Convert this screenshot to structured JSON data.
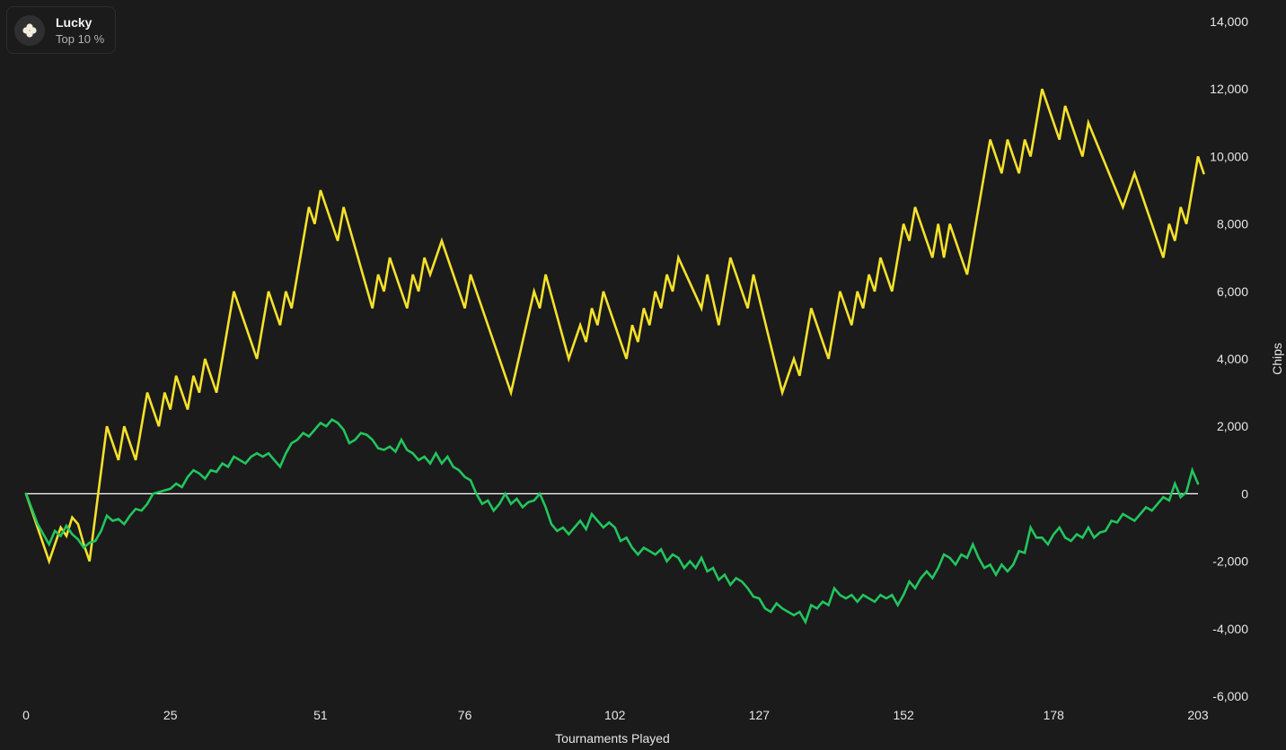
{
  "legend": {
    "name": "Lucky",
    "subtitle": "Top 10 %",
    "icon": "clover-icon"
  },
  "colors": {
    "background": "#1b1b1b",
    "yellow_series": "#f5e12a",
    "green_series": "#22c55e",
    "zero_line": "#ffffff",
    "text": "#e6e6e6"
  },
  "chart_data": {
    "type": "line",
    "xlabel": "Tournaments Played",
    "ylabel": "Chips",
    "xlim": [
      0,
      203
    ],
    "ylim": [
      -6000,
      14000
    ],
    "x_ticks": [
      0,
      25,
      51,
      76,
      102,
      127,
      152,
      178,
      203
    ],
    "y_ticks": [
      -6000,
      -4000,
      -2000,
      0,
      2000,
      4000,
      6000,
      8000,
      10000,
      12000,
      14000
    ],
    "y_tick_labels": [
      "-6,000",
      "-4,000",
      "-2,000",
      "0",
      "2,000",
      "4,000",
      "6,000",
      "8,000",
      "10,000",
      "12,000",
      "14,000"
    ],
    "reference_line": 0,
    "grid": false,
    "axis_position": "right",
    "series": [
      {
        "color": "#f5e12a",
        "points": [
          [
            0,
            0
          ],
          [
            4,
            -2000
          ],
          [
            5,
            -1500
          ],
          [
            6,
            -1000
          ],
          [
            7,
            -1250
          ],
          [
            8,
            -700
          ],
          [
            9,
            -900
          ],
          [
            10,
            -1500
          ],
          [
            11,
            -2000
          ],
          [
            14,
            2000
          ],
          [
            16,
            1000
          ],
          [
            17,
            2000
          ],
          [
            19,
            1000
          ],
          [
            21,
            3000
          ],
          [
            23,
            2000
          ],
          [
            24,
            3000
          ],
          [
            25,
            2500
          ],
          [
            26,
            3500
          ],
          [
            28,
            2500
          ],
          [
            29,
            3500
          ],
          [
            30,
            3000
          ],
          [
            31,
            4000
          ],
          [
            33,
            3000
          ],
          [
            36,
            6000
          ],
          [
            40,
            4000
          ],
          [
            42,
            6000
          ],
          [
            44,
            5000
          ],
          [
            45,
            6000
          ],
          [
            46,
            5500
          ],
          [
            49,
            8500
          ],
          [
            50,
            8000
          ],
          [
            51,
            9000
          ],
          [
            54,
            7500
          ],
          [
            55,
            8500
          ],
          [
            60,
            5500
          ],
          [
            61,
            6500
          ],
          [
            62,
            6000
          ],
          [
            63,
            7000
          ],
          [
            66,
            5500
          ],
          [
            67,
            6500
          ],
          [
            68,
            6000
          ],
          [
            69,
            7000
          ],
          [
            70,
            6500
          ],
          [
            72,
            7500
          ],
          [
            76,
            5500
          ],
          [
            77,
            6500
          ],
          [
            84,
            3000
          ],
          [
            88,
            6000
          ],
          [
            89,
            5500
          ],
          [
            90,
            6500
          ],
          [
            94,
            4000
          ],
          [
            96,
            5000
          ],
          [
            97,
            4500
          ],
          [
            98,
            5500
          ],
          [
            99,
            5000
          ],
          [
            100,
            6000
          ],
          [
            104,
            4000
          ],
          [
            105,
            5000
          ],
          [
            106,
            4500
          ],
          [
            107,
            5500
          ],
          [
            108,
            5000
          ],
          [
            109,
            6000
          ],
          [
            110,
            5500
          ],
          [
            111,
            6500
          ],
          [
            112,
            6000
          ],
          [
            113,
            7000
          ],
          [
            117,
            5500
          ],
          [
            118,
            6500
          ],
          [
            120,
            5000
          ],
          [
            122,
            7000
          ],
          [
            125,
            5500
          ],
          [
            126,
            6500
          ],
          [
            131,
            3000
          ],
          [
            133,
            4000
          ],
          [
            134,
            3500
          ],
          [
            136,
            5500
          ],
          [
            139,
            4000
          ],
          [
            141,
            6000
          ],
          [
            143,
            5000
          ],
          [
            144,
            6000
          ],
          [
            145,
            5500
          ],
          [
            146,
            6500
          ],
          [
            147,
            6000
          ],
          [
            148,
            7000
          ],
          [
            150,
            6000
          ],
          [
            152,
            8000
          ],
          [
            153,
            7500
          ],
          [
            154,
            8500
          ],
          [
            157,
            7000
          ],
          [
            158,
            8000
          ],
          [
            159,
            7000
          ],
          [
            160,
            8000
          ],
          [
            163,
            6500
          ],
          [
            167,
            10500
          ],
          [
            169,
            9500
          ],
          [
            170,
            10500
          ],
          [
            172,
            9500
          ],
          [
            173,
            10500
          ],
          [
            174,
            10000
          ],
          [
            176,
            12000
          ],
          [
            179,
            10500
          ],
          [
            180,
            11500
          ],
          [
            183,
            10000
          ],
          [
            184,
            11000
          ],
          [
            190,
            8500
          ],
          [
            192,
            9500
          ],
          [
            197,
            7000
          ],
          [
            198,
            8000
          ],
          [
            199,
            7500
          ],
          [
            200,
            8500
          ],
          [
            201,
            8000
          ],
          [
            203,
            10000
          ],
          [
            204,
            9500
          ]
        ]
      },
      {
        "color": "#22c55e",
        "points": [
          [
            0,
            0
          ],
          [
            2,
            -900
          ],
          [
            3,
            -1200
          ],
          [
            4,
            -1500
          ],
          [
            5,
            -1100
          ],
          [
            6,
            -1250
          ],
          [
            7,
            -950
          ],
          [
            8,
            -1200
          ],
          [
            9,
            -1350
          ],
          [
            10,
            -1600
          ],
          [
            11,
            -1450
          ],
          [
            12,
            -1400
          ],
          [
            13,
            -1100
          ],
          [
            14,
            -650
          ],
          [
            15,
            -800
          ],
          [
            16,
            -750
          ],
          [
            17,
            -900
          ],
          [
            18,
            -650
          ],
          [
            19,
            -450
          ],
          [
            20,
            -500
          ],
          [
            21,
            -300
          ],
          [
            22,
            0
          ],
          [
            23,
            50
          ],
          [
            24,
            100
          ],
          [
            25,
            150
          ],
          [
            26,
            300
          ],
          [
            27,
            200
          ],
          [
            28,
            500
          ],
          [
            29,
            700
          ],
          [
            30,
            600
          ],
          [
            31,
            450
          ],
          [
            32,
            700
          ],
          [
            33,
            650
          ],
          [
            34,
            900
          ],
          [
            35,
            800
          ],
          [
            36,
            1100
          ],
          [
            37,
            1000
          ],
          [
            38,
            900
          ],
          [
            39,
            1100
          ],
          [
            40,
            1200
          ],
          [
            41,
            1100
          ],
          [
            42,
            1200
          ],
          [
            43,
            1000
          ],
          [
            44,
            800
          ],
          [
            45,
            1200
          ],
          [
            46,
            1500
          ],
          [
            47,
            1600
          ],
          [
            48,
            1800
          ],
          [
            49,
            1700
          ],
          [
            50,
            1900
          ],
          [
            51,
            2100
          ],
          [
            52,
            2000
          ],
          [
            53,
            2200
          ],
          [
            54,
            2100
          ],
          [
            55,
            1900
          ],
          [
            56,
            1500
          ],
          [
            57,
            1600
          ],
          [
            58,
            1800
          ],
          [
            59,
            1750
          ],
          [
            60,
            1600
          ],
          [
            61,
            1350
          ],
          [
            62,
            1300
          ],
          [
            63,
            1400
          ],
          [
            64,
            1250
          ],
          [
            65,
            1600
          ],
          [
            66,
            1300
          ],
          [
            67,
            1200
          ],
          [
            68,
            1000
          ],
          [
            69,
            1100
          ],
          [
            70,
            900
          ],
          [
            71,
            1200
          ],
          [
            72,
            900
          ],
          [
            73,
            1100
          ],
          [
            74,
            800
          ],
          [
            75,
            700
          ],
          [
            76,
            500
          ],
          [
            77,
            400
          ],
          [
            78,
            0
          ],
          [
            79,
            -300
          ],
          [
            80,
            -200
          ],
          [
            81,
            -500
          ],
          [
            82,
            -300
          ],
          [
            83,
            0
          ],
          [
            84,
            -300
          ],
          [
            85,
            -150
          ],
          [
            86,
            -400
          ],
          [
            87,
            -250
          ],
          [
            88,
            -200
          ],
          [
            89,
            0
          ],
          [
            90,
            -400
          ],
          [
            91,
            -900
          ],
          [
            92,
            -1100
          ],
          [
            93,
            -1000
          ],
          [
            94,
            -1200
          ],
          [
            95,
            -1000
          ],
          [
            96,
            -800
          ],
          [
            97,
            -1050
          ],
          [
            98,
            -600
          ],
          [
            99,
            -800
          ],
          [
            100,
            -1000
          ],
          [
            101,
            -850
          ],
          [
            102,
            -1000
          ],
          [
            103,
            -1400
          ],
          [
            104,
            -1300
          ],
          [
            105,
            -1600
          ],
          [
            106,
            -1800
          ],
          [
            107,
            -1600
          ],
          [
            108,
            -1700
          ],
          [
            109,
            -1800
          ],
          [
            110,
            -1650
          ],
          [
            111,
            -2000
          ],
          [
            112,
            -1800
          ],
          [
            113,
            -1900
          ],
          [
            114,
            -2200
          ],
          [
            115,
            -2000
          ],
          [
            116,
            -2200
          ],
          [
            117,
            -1900
          ],
          [
            118,
            -2300
          ],
          [
            119,
            -2200
          ],
          [
            120,
            -2550
          ],
          [
            121,
            -2400
          ],
          [
            122,
            -2700
          ],
          [
            123,
            -2500
          ],
          [
            124,
            -2600
          ],
          [
            125,
            -2800
          ],
          [
            126,
            -3050
          ],
          [
            127,
            -3100
          ],
          [
            128,
            -3400
          ],
          [
            129,
            -3500
          ],
          [
            130,
            -3250
          ],
          [
            131,
            -3400
          ],
          [
            132,
            -3500
          ],
          [
            133,
            -3600
          ],
          [
            134,
            -3500
          ],
          [
            135,
            -3800
          ],
          [
            136,
            -3300
          ],
          [
            137,
            -3400
          ],
          [
            138,
            -3200
          ],
          [
            139,
            -3300
          ],
          [
            140,
            -2800
          ],
          [
            141,
            -3000
          ],
          [
            142,
            -3100
          ],
          [
            143,
            -3000
          ],
          [
            144,
            -3200
          ],
          [
            145,
            -3000
          ],
          [
            146,
            -3100
          ],
          [
            147,
            -3200
          ],
          [
            148,
            -3000
          ],
          [
            149,
            -3100
          ],
          [
            150,
            -3000
          ],
          [
            151,
            -3300
          ],
          [
            152,
            -3000
          ],
          [
            153,
            -2600
          ],
          [
            154,
            -2800
          ],
          [
            155,
            -2500
          ],
          [
            156,
            -2300
          ],
          [
            157,
            -2500
          ],
          [
            158,
            -2200
          ],
          [
            159,
            -1800
          ],
          [
            160,
            -1900
          ],
          [
            161,
            -2100
          ],
          [
            162,
            -1800
          ],
          [
            163,
            -1900
          ],
          [
            164,
            -1500
          ],
          [
            165,
            -1900
          ],
          [
            166,
            -2200
          ],
          [
            167,
            -2100
          ],
          [
            168,
            -2400
          ],
          [
            169,
            -2100
          ],
          [
            170,
            -2300
          ],
          [
            171,
            -2100
          ],
          [
            172,
            -1700
          ],
          [
            173,
            -1750
          ],
          [
            174,
            -1000
          ],
          [
            175,
            -1300
          ],
          [
            176,
            -1300
          ],
          [
            177,
            -1500
          ],
          [
            178,
            -1200
          ],
          [
            179,
            -1000
          ],
          [
            180,
            -1300
          ],
          [
            181,
            -1400
          ],
          [
            182,
            -1200
          ],
          [
            183,
            -1300
          ],
          [
            184,
            -1000
          ],
          [
            185,
            -1300
          ],
          [
            186,
            -1150
          ],
          [
            187,
            -1100
          ],
          [
            188,
            -800
          ],
          [
            189,
            -850
          ],
          [
            190,
            -600
          ],
          [
            191,
            -700
          ],
          [
            192,
            -800
          ],
          [
            193,
            -600
          ],
          [
            194,
            -400
          ],
          [
            195,
            -500
          ],
          [
            196,
            -300
          ],
          [
            197,
            -100
          ],
          [
            198,
            -200
          ],
          [
            199,
            300
          ],
          [
            200,
            -100
          ],
          [
            201,
            50
          ],
          [
            202,
            700
          ],
          [
            203,
            300
          ]
        ]
      }
    ]
  }
}
